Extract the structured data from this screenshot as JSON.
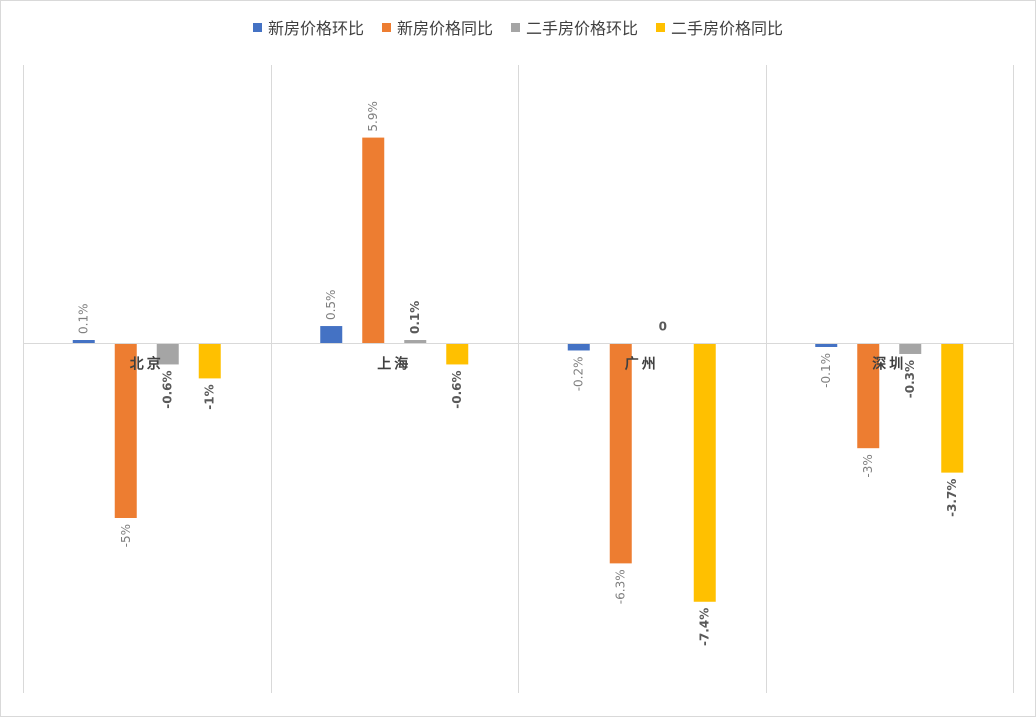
{
  "chart_data": {
    "type": "bar",
    "title": "",
    "xlabel": "",
    "ylabel": "",
    "categories": [
      "北京",
      "上海",
      "广州",
      "深圳"
    ],
    "series": [
      {
        "name": "新房价格环比",
        "color": "#4472C4",
        "values": [
          0.1,
          0.5,
          -0.2,
          -0.1
        ],
        "labels": [
          "0.1%",
          "0.5%",
          "-0.2%",
          "-0.1%"
        ],
        "label_bold": false
      },
      {
        "name": "新房价格同比",
        "color": "#ED7D31",
        "values": [
          -5,
          5.9,
          -6.3,
          -3
        ],
        "labels": [
          "-5%",
          "5.9%",
          "-6.3%",
          "-3%"
        ],
        "label_bold": false
      },
      {
        "name": "二手房价格环比",
        "color": "#A5A5A5",
        "values": [
          -0.6,
          0.1,
          0,
          -0.3
        ],
        "labels": [
          "-0.6%",
          "0.1%",
          "0",
          "-0.3%"
        ],
        "label_bold": true
      },
      {
        "name": "二手房价格同比",
        "color": "#FFC000",
        "values": [
          -1,
          -0.6,
          -7.4,
          -3.7
        ],
        "labels": [
          "-1%",
          "-0.6%",
          "-7.4%",
          "-3.7%"
        ],
        "label_bold": true
      }
    ],
    "ylim": [
      -10,
      8
    ],
    "grid": "vertical category separators",
    "legend": "top"
  }
}
